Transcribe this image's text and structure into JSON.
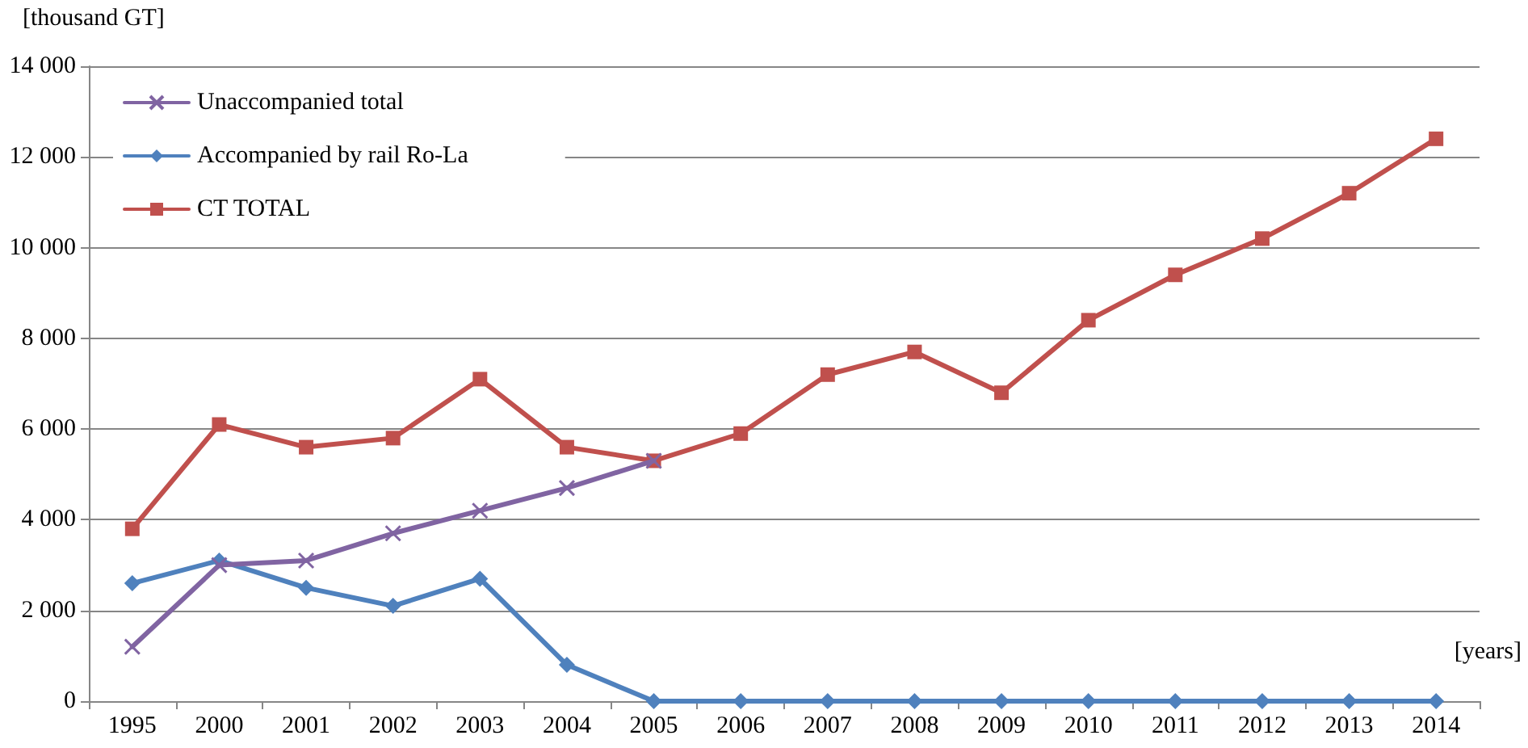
{
  "chart_data": {
    "type": "line",
    "ylabel": "[thousand GT]",
    "xlabel": "[years]",
    "categories": [
      "1995",
      "2000",
      "2001",
      "2002",
      "2003",
      "2004",
      "2005",
      "2006",
      "2007",
      "2008",
      "2009",
      "2010",
      "2011",
      "2012",
      "2013",
      "2014"
    ],
    "series": [
      {
        "name": "Unaccompanied total",
        "color": "#8064a2",
        "marker": "cross",
        "values": [
          1200,
          3000,
          3100,
          3700,
          4200,
          4700,
          5300,
          null,
          null,
          null,
          null,
          null,
          null,
          null,
          null,
          null
        ]
      },
      {
        "name": "Accompanied by rail Ro-La",
        "color": "#4f81bd",
        "marker": "diamond",
        "values": [
          2600,
          3100,
          2500,
          2100,
          2700,
          800,
          0,
          0,
          0,
          0,
          0,
          0,
          0,
          0,
          0,
          0
        ]
      },
      {
        "name": "CT TOTAL",
        "color": "#c0504d",
        "marker": "square",
        "values": [
          3800,
          6100,
          5600,
          5800,
          7100,
          5600,
          5300,
          5900,
          7200,
          7700,
          6800,
          8400,
          9400,
          10200,
          11200,
          12400
        ]
      }
    ],
    "ylim": [
      0,
      14000
    ],
    "yticks": [
      0,
      {
        "value": 2000,
        "label": "2 000"
      },
      {
        "value": 4000,
        "label": "4 000"
      },
      {
        "value": 6000,
        "label": "6 000"
      },
      {
        "value": 8000,
        "label": "8 000"
      },
      {
        "value": 10000,
        "label": "10 000"
      },
      {
        "value": 12000,
        "label": "12 000"
      },
      {
        "value": 14000,
        "label": "14 000"
      }
    ],
    "grid": "y",
    "legend": "top left",
    "line_style": "solid"
  }
}
